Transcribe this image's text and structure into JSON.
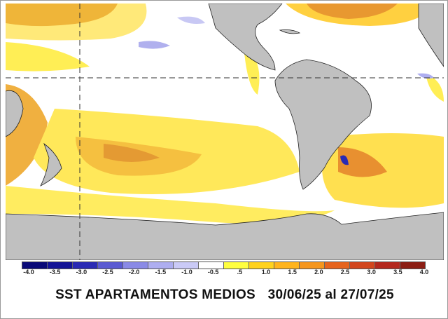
{
  "title": {
    "main": "SST APARTAMENTOS MEDIOS",
    "period": "30/06/25 al 27/07/25"
  },
  "colorbar": {
    "labels": [
      "-4.0",
      "-3.5",
      "-3.0",
      "-2.5",
      "-2.0",
      "-1.5",
      "-1.0",
      "-0.5",
      ".5",
      "1.0",
      "1.5",
      "2.0",
      "2.5",
      "3.0",
      "3.5",
      "4.0"
    ],
    "colors": [
      "#0a0a78",
      "#141496",
      "#2a2ab4",
      "#5a5ad2",
      "#8a8ae6",
      "#aeaef0",
      "#cacaf6",
      "#ffffff",
      "#ffff40",
      "#ffd21e",
      "#ffb41e",
      "#f5961e",
      "#e6641e",
      "#d2461e",
      "#b4281e",
      "#8c1e14"
    ]
  },
  "map": {
    "land_color": "#c0c0c0",
    "ocean_color": "#ffffff"
  }
}
